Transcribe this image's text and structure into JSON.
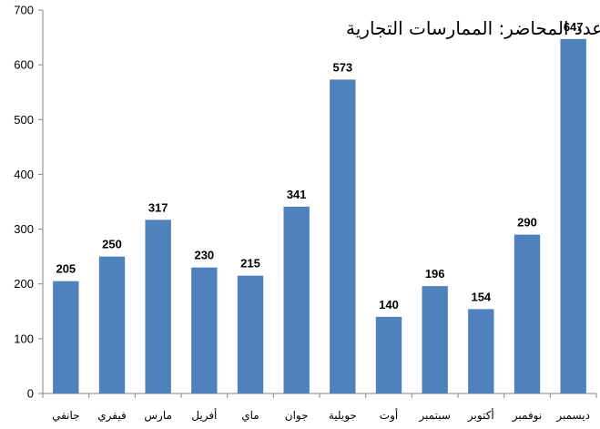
{
  "chart_data": {
    "type": "bar",
    "title": "عدد المحاضر: الممارسات التجارية",
    "categories": [
      "جانفي",
      "فيفري",
      "مارس",
      "أفريل",
      "ماي",
      "جوان",
      "جويلية",
      "أوت",
      "سبتمبر",
      "أكتوبر",
      "نوفمبر",
      "ديسمبر"
    ],
    "values": [
      205,
      250,
      317,
      230,
      215,
      341,
      573,
      140,
      196,
      154,
      290,
      647
    ],
    "ylim": [
      0,
      700
    ],
    "yticks": [
      0,
      100,
      200,
      300,
      400,
      500,
      600,
      700
    ],
    "grid": false,
    "legend": "none",
    "bar_color": "#4F81BD",
    "axis_color": "#868686"
  }
}
